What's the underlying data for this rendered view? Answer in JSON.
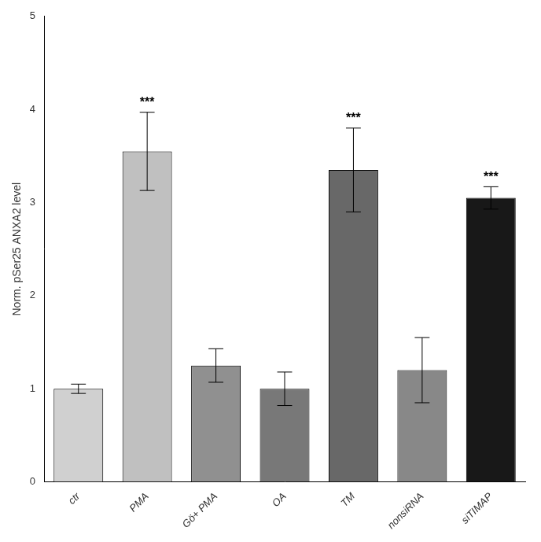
{
  "chart_data": {
    "type": "bar",
    "categories": [
      "ctr",
      "PMA",
      "Gö+ PMA",
      "OA",
      "TM",
      "nonsiRNA",
      "siTIMAP"
    ],
    "values": [
      1.0,
      3.55,
      1.25,
      1.0,
      3.35,
      1.2,
      3.05
    ],
    "errors": [
      0.05,
      0.42,
      0.18,
      0.18,
      0.45,
      0.35,
      0.12
    ],
    "colors": [
      "#d0d0d0",
      "#c0c0c0",
      "#909090",
      "#787878",
      "#686868",
      "#888888",
      "#181818"
    ],
    "y_label": "Norm. pSer25 ANXA2 level",
    "ylim": [
      0,
      5
    ],
    "yticks": [
      0,
      1,
      2,
      3,
      4,
      5
    ],
    "grid": false,
    "annotations": [
      {
        "category": "PMA",
        "text": "***"
      },
      {
        "category": "TM",
        "text": "***"
      },
      {
        "category": "siTIMAP",
        "text": "***"
      }
    ]
  }
}
